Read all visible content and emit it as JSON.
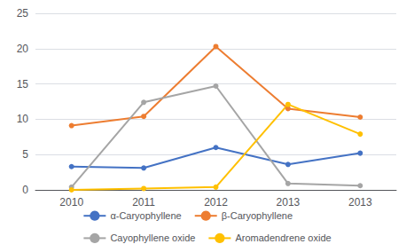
{
  "chart_data": {
    "type": "line",
    "categories": [
      "2010",
      "2011",
      "2012",
      "2013",
      "2013"
    ],
    "series": [
      {
        "name": "α-Caryophyllene",
        "color": "#4472C4",
        "marker": "circle",
        "values": [
          3.3,
          3.1,
          6.0,
          3.6,
          5.2
        ]
      },
      {
        "name": "β-Caryophyllene",
        "color": "#ED7D31",
        "marker": "circle",
        "values": [
          9.1,
          10.4,
          20.3,
          11.5,
          10.3
        ]
      },
      {
        "name": "Cayophyllene oxide",
        "color": "#A5A5A5",
        "marker": "circle",
        "values": [
          0.4,
          12.4,
          14.7,
          0.9,
          0.6
        ]
      },
      {
        "name": "Aromadendrene oxide",
        "color": "#FFC000",
        "marker": "circle",
        "values": [
          0.0,
          0.2,
          0.4,
          12.1,
          7.9
        ]
      }
    ],
    "ylim": [
      0,
      25
    ],
    "yticks": [
      0,
      5,
      10,
      15,
      20,
      25
    ],
    "grid": true,
    "legend": "bottom"
  }
}
